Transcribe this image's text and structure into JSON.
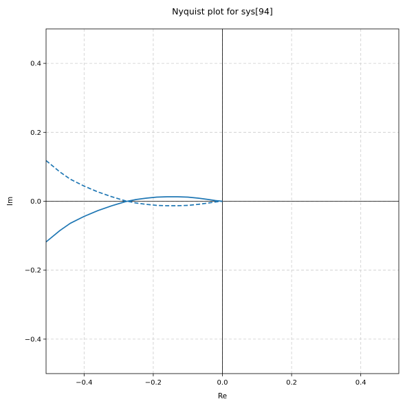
{
  "chart_data": {
    "type": "line",
    "title": "Nyquist plot for sys[94]",
    "xlabel": "Re",
    "ylabel": "Im",
    "xlim": [
      -0.51,
      0.51
    ],
    "ylim": [
      -0.5,
      0.5
    ],
    "xticks": [
      -0.4,
      -0.2,
      0.0,
      0.2,
      0.4
    ],
    "yticks": [
      -0.4,
      -0.2,
      0.0,
      0.2,
      0.4
    ],
    "xtick_labels": [
      "−0.4",
      "−0.2",
      "0.0",
      "0.2",
      "0.4"
    ],
    "ytick_labels": [
      "−0.4",
      "−0.2",
      "0.0",
      "0.2",
      "0.4"
    ],
    "grid": true,
    "reference_lines": {
      "x": 0.0,
      "y": 0.0,
      "color": "#000000"
    },
    "series": [
      {
        "style": "solid",
        "color": "#1f77b4",
        "x": [
          -0.51,
          -0.47,
          -0.44,
          -0.4,
          -0.36,
          -0.32,
          -0.28,
          -0.25,
          -0.22,
          -0.19,
          -0.16,
          -0.13,
          -0.1,
          -0.07,
          -0.04,
          -0.02,
          0.0
        ],
        "y": [
          -0.118,
          -0.085,
          -0.064,
          -0.044,
          -0.027,
          -0.013,
          -0.001,
          0.005,
          0.009,
          0.012,
          0.013,
          0.013,
          0.012,
          0.009,
          0.005,
          0.002,
          0.0
        ]
      },
      {
        "style": "dashed",
        "color": "#1f77b4",
        "x": [
          -0.51,
          -0.47,
          -0.44,
          -0.4,
          -0.36,
          -0.32,
          -0.28,
          -0.25,
          -0.22,
          -0.19,
          -0.16,
          -0.13,
          -0.1,
          -0.07,
          -0.04,
          -0.02,
          0.0
        ],
        "y": [
          0.118,
          0.085,
          0.064,
          0.044,
          0.027,
          0.013,
          0.001,
          -0.005,
          -0.009,
          -0.012,
          -0.013,
          -0.013,
          -0.012,
          -0.009,
          -0.005,
          -0.002,
          0.0
        ]
      }
    ]
  }
}
